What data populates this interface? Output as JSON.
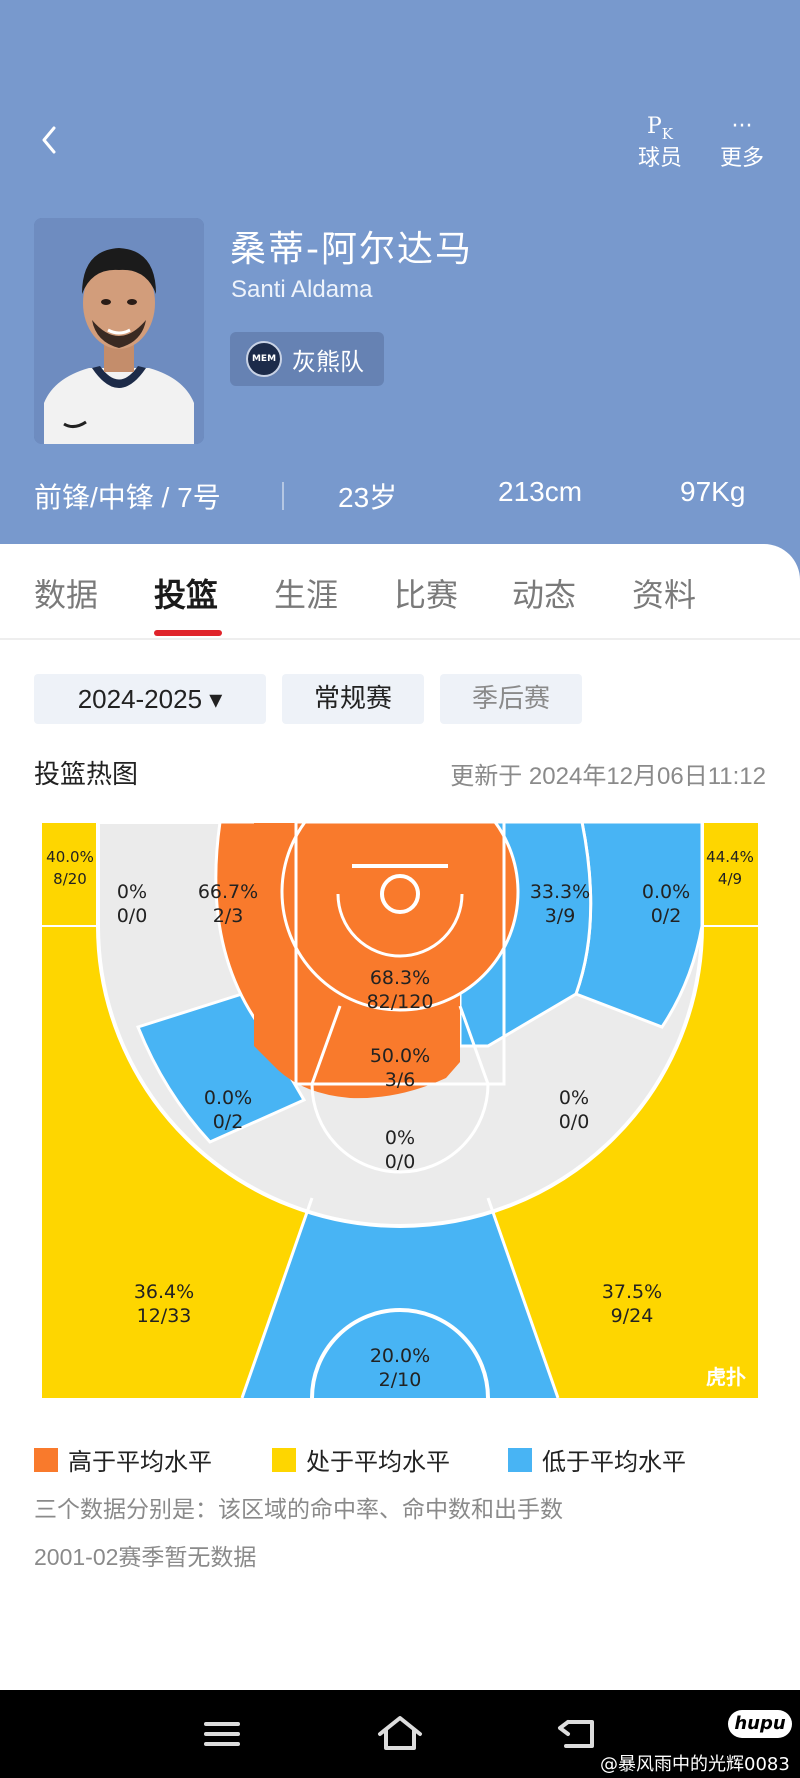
{
  "header": {
    "actions": [
      {
        "label": "球员",
        "icon": "pk-icon",
        "icon_text": "PK"
      },
      {
        "label": "更多",
        "icon": "more-icon",
        "icon_text": "···"
      }
    ]
  },
  "player": {
    "name_cn": "桑蒂-阿尔达马",
    "name_en": "Santi Aldama",
    "team": "灰熊队",
    "team_logo_text": "MEM",
    "position": "前锋/中锋 / 7号",
    "age": "23岁",
    "height": "213cm",
    "weight": "97Kg"
  },
  "tabs": [
    "数据",
    "投篮",
    "生涯",
    "比赛",
    "动态",
    "资料"
  ],
  "active_tab": "投篮",
  "filters": {
    "season": "2024-2025 ▾",
    "regular": "常规赛",
    "playoffs": "季后赛"
  },
  "heatmap": {
    "title": "投篮热图",
    "updated": "更新于 2024年12月06日11:12",
    "colors": {
      "above": "#f97a2c",
      "average": "#fed600",
      "below": "#48b4f4",
      "none": "#ebebeb"
    },
    "zones": {
      "left_corner3": {
        "pct": "40.0%",
        "made": "8/20",
        "level": "average"
      },
      "right_corner3": {
        "pct": "44.4%",
        "made": "4/9",
        "level": "average"
      },
      "left_baseline_mid_outer": {
        "pct": "0%",
        "made": "0/0",
        "level": "none"
      },
      "left_baseline_mid_inner": {
        "pct": "66.7%",
        "made": "2/3",
        "level": "above"
      },
      "restricted_area": {
        "pct": "68.3%",
        "made": "82/120",
        "level": "above"
      },
      "paint": {
        "pct": "50.0%",
        "made": "3/6",
        "level": "above"
      },
      "right_baseline_mid_inner": {
        "pct": "33.3%",
        "made": "3/9",
        "level": "below"
      },
      "right_baseline_mid_outer": {
        "pct": "0.0%",
        "made": "0/2",
        "level": "below"
      },
      "left_wing_mid": {
        "pct": "0.0%",
        "made": "0/2",
        "level": "below"
      },
      "right_wing_mid": {
        "pct": "0%",
        "made": "0/0",
        "level": "none"
      },
      "top_mid": {
        "pct": "0%",
        "made": "0/0",
        "level": "none"
      },
      "left_wing3": {
        "pct": "36.4%",
        "made": "12/33",
        "level": "average"
      },
      "right_wing3": {
        "pct": "37.5%",
        "made": "9/24",
        "level": "average"
      },
      "top3": {
        "pct": "20.0%",
        "made": "2/10",
        "level": "below"
      }
    },
    "watermark": "虎扑"
  },
  "legend": [
    "高于平均水平",
    "处于平均水平",
    "低于平均水平"
  ],
  "notes": [
    "三个数据分别是：该区域的命中率、命中数和出手数",
    "2001-02赛季暂无数据"
  ],
  "system": {
    "watermark": "@暴风雨中的光辉0083",
    "hupu_logo": "hupu"
  }
}
